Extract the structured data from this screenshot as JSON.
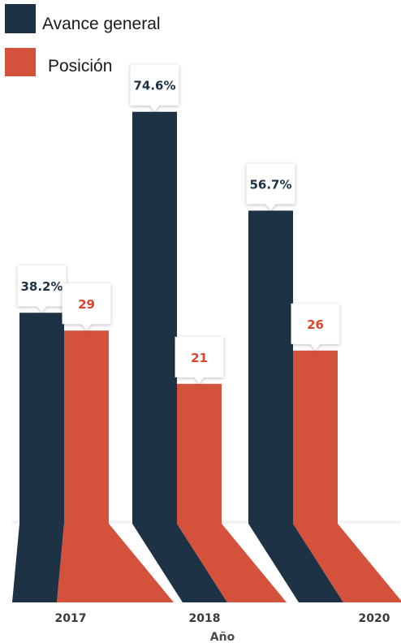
{
  "chart_data": {
    "type": "bar",
    "categories": [
      "2017",
      "2018",
      "2020"
    ],
    "xlabel": "Año",
    "ylabel": "",
    "title": "",
    "legend_position": "top-left",
    "grid": false,
    "series": [
      {
        "name": "Avance general",
        "values": [
          38.2,
          74.6,
          56.7
        ],
        "labels": [
          "38.2%",
          "74.6%",
          "56.7%"
        ],
        "color": "#1e3246"
      },
      {
        "name": "Posición",
        "values": [
          29,
          21,
          26
        ],
        "labels": [
          "29",
          "21",
          "26"
        ],
        "color": "#d4513b"
      }
    ]
  },
  "colors": {
    "callout_fill": "#ffffff",
    "callout_shadow": "#cfcfcf",
    "label_dark": "#1e3246",
    "label_red": "#e0442e"
  }
}
